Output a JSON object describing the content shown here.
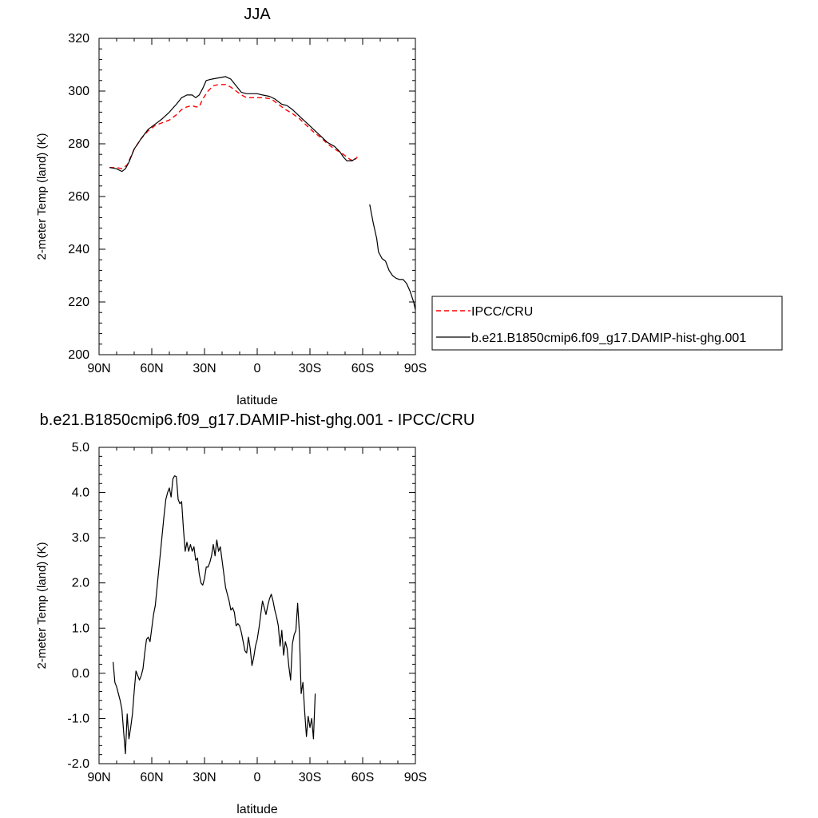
{
  "chart_data": [
    {
      "type": "line",
      "title": "JJA",
      "xlabel": "latitude",
      "ylabel": "2-meter Temp (land) (K)",
      "xlim": [
        90,
        -90
      ],
      "ylim": [
        200,
        320
      ],
      "x_ticks": [
        90,
        60,
        30,
        0,
        -30,
        -60,
        -90
      ],
      "x_tick_labels": [
        "90N",
        "60N",
        "30N",
        "0",
        "30S",
        "60S",
        "90S"
      ],
      "y_ticks": [
        200,
        220,
        240,
        260,
        280,
        300,
        320
      ],
      "y_tick_labels": [
        "200",
        "220",
        "240",
        "260",
        "280",
        "300",
        "320"
      ],
      "legend_position": "right",
      "series": [
        {
          "name": "IPCC/CRU",
          "color": "#ff0000",
          "dash": "dashed",
          "segments": [
            [
              [
                84,
                271
              ],
              [
                80,
                271
              ],
              [
                77,
                270.5
              ],
              [
                74,
                272
              ],
              [
                72,
                275
              ],
              [
                70,
                278
              ],
              [
                66,
                282
              ],
              [
                62,
                285
              ],
              [
                58,
                287
              ],
              [
                54,
                288
              ],
              [
                50,
                289
              ],
              [
                46,
                291
              ],
              [
                43,
                293
              ],
              [
                40,
                294
              ],
              [
                37,
                294.5
              ],
              [
                35,
                294
              ],
              [
                33,
                294
              ],
              [
                31,
                297
              ],
              [
                28,
                300
              ],
              [
                25,
                302
              ],
              [
                22,
                302.5
              ],
              [
                18,
                302.5
              ],
              [
                15,
                301.5
              ],
              [
                12,
                300
              ],
              [
                9,
                298.5
              ],
              [
                6,
                297.5
              ],
              [
                3,
                297.5
              ],
              [
                0,
                297.5
              ],
              [
                -4,
                297.5
              ],
              [
                -8,
                297
              ],
              [
                -12,
                295
              ],
              [
                -16,
                293
              ],
              [
                -20,
                291.5
              ],
              [
                -24,
                289.5
              ],
              [
                -28,
                287
              ],
              [
                -32,
                284.5
              ],
              [
                -36,
                282.5
              ],
              [
                -40,
                280
              ],
              [
                -44,
                278
              ],
              [
                -48,
                276.5
              ],
              [
                -51,
                275
              ],
              [
                -53,
                274
              ],
              [
                -55,
                273.5
              ],
              [
                -57,
                275
              ]
            ]
          ]
        },
        {
          "name": "b.e21.B1850cmip6.f09_g17.DAMIP-hist-ghg.001",
          "color": "#000000",
          "dash": "solid",
          "segments": [
            [
              [
                84,
                271
              ],
              [
                80,
                270.5
              ],
              [
                77,
                269.5
              ],
              [
                75,
                270.5
              ],
              [
                73,
                273
              ],
              [
                70,
                278
              ],
              [
                66,
                282
              ],
              [
                62,
                285.5
              ],
              [
                58,
                287.5
              ],
              [
                54,
                289.5
              ],
              [
                50,
                292
              ],
              [
                46,
                295
              ],
              [
                43,
                297.5
              ],
              [
                40,
                298.5
              ],
              [
                37,
                298.5
              ],
              [
                35,
                297.5
              ],
              [
                33,
                298.5
              ],
              [
                31,
                301
              ],
              [
                29,
                304
              ],
              [
                26,
                304.5
              ],
              [
                22,
                305
              ],
              [
                18,
                305.5
              ],
              [
                15,
                304.5
              ],
              [
                12,
                302
              ],
              [
                9,
                299.5
              ],
              [
                6,
                299
              ],
              [
                3,
                299
              ],
              [
                0,
                299
              ],
              [
                -3,
                298.5
              ],
              [
                -7,
                298
              ],
              [
                -10,
                297
              ],
              [
                -14,
                295
              ],
              [
                -17,
                294.5
              ],
              [
                -20,
                293
              ],
              [
                -24,
                290.5
              ],
              [
                -28,
                288
              ],
              [
                -32,
                285.5
              ],
              [
                -36,
                283
              ],
              [
                -40,
                280.5
              ],
              [
                -44,
                279
              ],
              [
                -47,
                277
              ],
              [
                -49,
                275
              ],
              [
                -51,
                273.5
              ],
              [
                -54,
                273.5
              ],
              [
                -56,
                274.5
              ]
            ],
            [
              [
                -64,
                257
              ],
              [
                -66,
                250
              ],
              [
                -68,
                244
              ],
              [
                -69,
                239
              ],
              [
                -71,
                236.5
              ],
              [
                -73,
                235.5
              ],
              [
                -75,
                232
              ],
              [
                -77,
                230
              ],
              [
                -79,
                229
              ],
              [
                -81,
                228.5
              ],
              [
                -83,
                228.5
              ],
              [
                -85,
                227
              ],
              [
                -87,
                224
              ],
              [
                -89,
                220
              ],
              [
                -90,
                217
              ]
            ]
          ]
        }
      ]
    },
    {
      "type": "line",
      "title": "b.e21.B1850cmip6.f09_g17.DAMIP-hist-ghg.001 - IPCC/CRU",
      "xlabel": "latitude",
      "ylabel": "2-meter Temp (land) (K)",
      "xlim": [
        90,
        -90
      ],
      "ylim": [
        -2.0,
        5.0
      ],
      "x_ticks": [
        90,
        60,
        30,
        0,
        -30,
        -60,
        -90
      ],
      "x_tick_labels": [
        "90N",
        "60N",
        "30N",
        "0",
        "30S",
        "60S",
        "90S"
      ],
      "y_ticks": [
        -2,
        -1,
        0,
        1,
        2,
        3,
        4,
        5
      ],
      "y_tick_labels": [
        "-2.0",
        "-1.0",
        "0.0",
        "1.0",
        "2.0",
        "3.0",
        "4.0",
        "5.0"
      ],
      "series": [
        {
          "color": "#000000",
          "dash": "solid",
          "segments": [
            [
              [
                82,
                0.25
              ],
              [
                81,
                -0.2
              ],
              [
                80,
                -0.3
              ],
              [
                78,
                -0.6
              ],
              [
                77,
                -0.8
              ],
              [
                76,
                -1.3
              ],
              [
                75,
                -1.78
              ],
              [
                74,
                -0.9
              ],
              [
                73,
                -1.45
              ],
              [
                72,
                -1.2
              ],
              [
                71,
                -0.9
              ],
              [
                70,
                -0.4
              ],
              [
                69,
                0.05
              ],
              [
                68,
                -0.05
              ],
              [
                67,
                -0.15
              ],
              [
                66,
                -0.05
              ],
              [
                65,
                0.1
              ],
              [
                64,
                0.45
              ],
              [
                63,
                0.75
              ],
              [
                62,
                0.8
              ],
              [
                61,
                0.7
              ],
              [
                60,
                1.0
              ],
              [
                59,
                1.3
              ],
              [
                58,
                1.5
              ],
              [
                57,
                1.9
              ],
              [
                56,
                2.3
              ],
              [
                55,
                2.7
              ],
              [
                54,
                3.1
              ],
              [
                53,
                3.5
              ],
              [
                52,
                3.85
              ],
              [
                51,
                4.0
              ],
              [
                50,
                4.1
              ],
              [
                49,
                3.9
              ],
              [
                48,
                4.3
              ],
              [
                47,
                4.37
              ],
              [
                46,
                4.35
              ],
              [
                45,
                3.85
              ],
              [
                44,
                3.75
              ],
              [
                43,
                3.8
              ],
              [
                42,
                3.2
              ],
              [
                41,
                2.7
              ],
              [
                40,
                2.9
              ],
              [
                39,
                2.7
              ],
              [
                38,
                2.85
              ],
              [
                37,
                2.7
              ],
              [
                36,
                2.8
              ],
              [
                35,
                2.5
              ],
              [
                34,
                2.55
              ],
              [
                33,
                2.2
              ],
              [
                32,
                2.0
              ],
              [
                31,
                1.95
              ],
              [
                30,
                2.1
              ],
              [
                29,
                2.35
              ],
              [
                28,
                2.35
              ],
              [
                27,
                2.45
              ],
              [
                26,
                2.6
              ],
              [
                25,
                2.85
              ],
              [
                24,
                2.6
              ],
              [
                23,
                2.95
              ],
              [
                22,
                2.7
              ],
              [
                21,
                2.8
              ],
              [
                20,
                2.5
              ],
              [
                19,
                2.2
              ],
              [
                18,
                1.9
              ],
              [
                17,
                1.75
              ],
              [
                16,
                1.6
              ],
              [
                15,
                1.4
              ],
              [
                14,
                1.45
              ],
              [
                13,
                1.35
              ],
              [
                12,
                1.05
              ],
              [
                11,
                1.1
              ],
              [
                10,
                1.05
              ],
              [
                9,
                0.9
              ],
              [
                8,
                0.7
              ],
              [
                7,
                0.5
              ],
              [
                6,
                0.45
              ],
              [
                5,
                0.8
              ],
              [
                4,
                0.55
              ],
              [
                3,
                0.17
              ],
              [
                2,
                0.35
              ],
              [
                1,
                0.6
              ],
              [
                0,
                0.75
              ],
              [
                -1,
                1.0
              ],
              [
                -2,
                1.3
              ],
              [
                -3,
                1.6
              ],
              [
                -4,
                1.45
              ],
              [
                -5,
                1.3
              ],
              [
                -6,
                1.5
              ],
              [
                -7,
                1.65
              ],
              [
                -8,
                1.75
              ],
              [
                -9,
                1.6
              ],
              [
                -10,
                1.4
              ],
              [
                -11,
                1.25
              ],
              [
                -12,
                1.05
              ],
              [
                -13,
                0.6
              ],
              [
                -14,
                0.95
              ],
              [
                -15,
                0.4
              ],
              [
                -16,
                0.7
              ],
              [
                -17,
                0.55
              ],
              [
                -18,
                0.15
              ],
              [
                -19,
                -0.15
              ],
              [
                -20,
                0.65
              ],
              [
                -21,
                0.85
              ],
              [
                -22,
                0.95
              ],
              [
                -23,
                1.55
              ],
              [
                -24,
                0.9
              ],
              [
                -25,
                -0.45
              ],
              [
                -26,
                -0.2
              ],
              [
                -27,
                -0.85
              ],
              [
                -28,
                -1.4
              ],
              [
                -29,
                -0.95
              ],
              [
                -30,
                -1.2
              ],
              [
                -31,
                -1.0
              ],
              [
                -32,
                -1.45
              ],
              [
                -33,
                -0.45
              ]
            ]
          ]
        }
      ]
    }
  ]
}
